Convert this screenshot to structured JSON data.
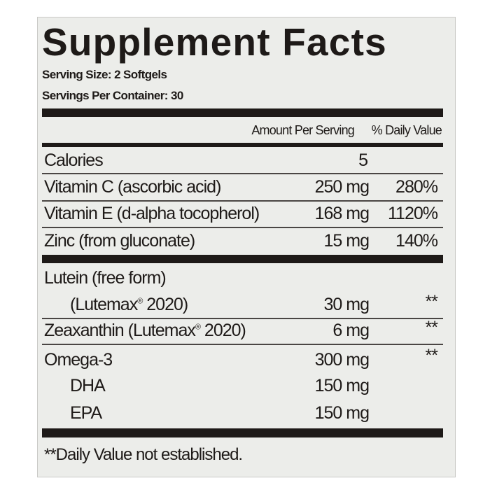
{
  "title": "Supplement Facts",
  "serving_size": "Serving Size: 2 Softgels",
  "servings_per_container": "Servings Per Container: 30",
  "headers": {
    "amount": "Amount Per Serving",
    "dv": "% Daily Value"
  },
  "rows": [
    {
      "name": "Calories",
      "amount": "5",
      "dv": ""
    },
    {
      "name": "Vitamin C (ascorbic acid)",
      "amount": "250 mg",
      "dv": "280%"
    },
    {
      "name": "Vitamin E (d-alpha tocopherol)",
      "amount": "168 mg",
      "dv": "1120%"
    },
    {
      "name": "Zinc (from gluconate)",
      "amount": "15 mg",
      "dv": "140%"
    },
    {
      "name": "Lutein (free form)",
      "name2a": "(Lutemax",
      "name2b": " 2020)",
      "amount": "30 mg",
      "dv": "**"
    },
    {
      "name_a": "Zeaxanthin (Lutemax",
      "name_b": " 2020)",
      "amount": "6 mg",
      "dv": "**"
    },
    {
      "name": "Omega-3",
      "amount": "300 mg",
      "dv": "**"
    },
    {
      "name": "DHA",
      "amount": "150 mg"
    },
    {
      "name": "EPA",
      "amount": "150 mg"
    }
  ],
  "registered_mark": "®",
  "footnote": "**Daily Value not established."
}
